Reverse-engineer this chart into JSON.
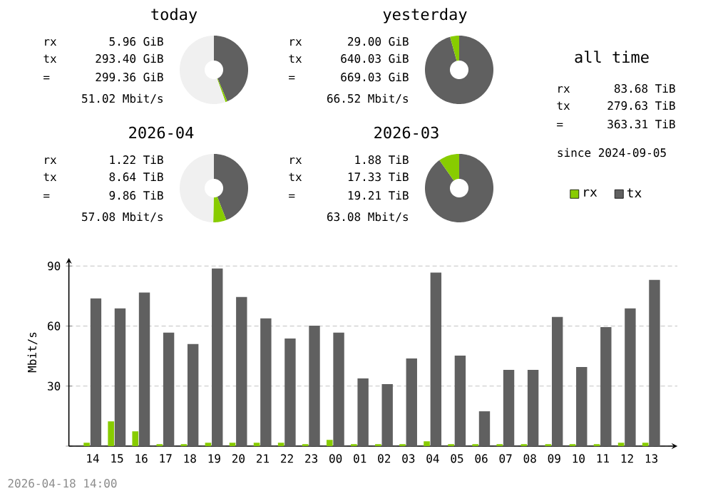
{
  "chart_data": [
    {
      "type": "donut",
      "title": "today",
      "categories": [
        null,
        null,
        null
      ],
      "values": [
        43.6,
        0.9,
        55.5
      ],
      "colors": [
        "#606060",
        "#88cc00",
        "#f0f0f0"
      ],
      "annotations": [
        "rx",
        "5.96 GiB",
        "tx",
        "293.40 GiB",
        "=",
        "299.36 GiB",
        "51.02 Mbit/s"
      ]
    },
    {
      "type": "donut",
      "title": "yesterday",
      "categories": [
        null,
        null
      ],
      "values": [
        95.7,
        4.3
      ],
      "colors": [
        "#606060",
        "#88cc00"
      ],
      "annotations": [
        "rx",
        "29.00 GiB",
        "tx",
        "640.03 GiB",
        "=",
        "669.03 GiB",
        "66.52 Mbit/s"
      ]
    },
    {
      "type": "other",
      "title": "all time",
      "annotations": [
        "rx",
        "83.68 TiB",
        "tx",
        "279.63 TiB",
        "=",
        "363.31 TiB",
        "since 2024-09-05"
      ]
    },
    {
      "type": "donut",
      "title": "2026-04",
      "categories": [
        null,
        null,
        null
      ],
      "values": [
        44.1,
        6.2,
        49.7
      ],
      "colors": [
        "#606060",
        "#88cc00",
        "#f0f0f0"
      ],
      "annotations": [
        "rx",
        "1.22 TiB",
        "tx",
        "8.64 TiB",
        "=",
        "9.86 TiB",
        "57.08 Mbit/s"
      ]
    },
    {
      "type": "donut",
      "title": "2026-03",
      "categories": [
        null,
        null
      ],
      "values": [
        90.2,
        9.8
      ],
      "colors": [
        "#606060",
        "#88cc00"
      ],
      "annotations": [
        "rx",
        "1.88 TiB",
        "tx",
        "17.33 TiB",
        "=",
        "19.21 TiB",
        "63.08 Mbit/s"
      ]
    },
    {
      "type": "bar",
      "ylabel": "Mbit/s",
      "categories": [
        "14",
        "15",
        "16",
        "17",
        "18",
        "19",
        "20",
        "21",
        "22",
        "23",
        "00",
        "01",
        "02",
        "03",
        "04",
        "05",
        "06",
        "07",
        "08",
        "09",
        "10",
        "11",
        "12",
        "13"
      ],
      "series": [
        {
          "name": "rx",
          "color": "#88cc00",
          "values": [
            1.7,
            12.4,
            7.4,
            1.0,
            1.0,
            1.7,
            1.7,
            1.7,
            1.7,
            1.0,
            3.1,
            1.0,
            1.0,
            1.0,
            2.4,
            1.0,
            1.0,
            1.0,
            1.0,
            1.0,
            1.0,
            1.0,
            1.7,
            1.7
          ]
        },
        {
          "name": "tx",
          "color": "#606060",
          "values": [
            73.8,
            68.8,
            76.7,
            56.7,
            51.0,
            88.8,
            74.5,
            63.8,
            53.8,
            60.2,
            56.7,
            33.8,
            31.0,
            43.8,
            86.7,
            45.2,
            17.4,
            38.1,
            38.1,
            64.5,
            39.5,
            59.5,
            68.8,
            83.1
          ]
        }
      ],
      "ylim": [
        0,
        94
      ],
      "yticks": [
        {
          "value": 0,
          "label": null
        },
        30,
        60,
        90
      ],
      "grid": "y",
      "legend": "top right",
      "annotations": [
        "2026-04-18 14:00"
      ]
    }
  ]
}
